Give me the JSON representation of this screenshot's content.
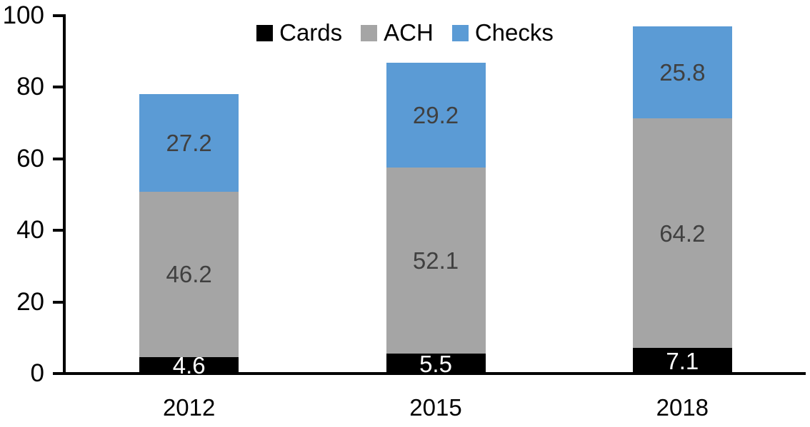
{
  "chart_data": {
    "type": "bar",
    "stacked": true,
    "title": "",
    "categories": [
      "2012",
      "2015",
      "2018"
    ],
    "series": [
      {
        "name": "Cards",
        "color": "#000000",
        "label_color": "#ffffff",
        "values": [
          4.6,
          5.5,
          7.1
        ]
      },
      {
        "name": "ACH",
        "color": "#a5a5a5",
        "label_color": "#404040",
        "values": [
          46.2,
          52.1,
          64.2
        ]
      },
      {
        "name": "Checks",
        "color": "#5b9bd5",
        "label_color": "#404040",
        "values": [
          27.2,
          29.2,
          25.8
        ]
      }
    ],
    "totals": [
      78.0,
      86.8,
      97.1
    ],
    "ylim": [
      0,
      100
    ],
    "yticks": [
      0,
      20,
      40,
      60,
      80,
      100
    ],
    "legend_position": "top",
    "legend_labels": [
      "Cards",
      "ACH",
      "Checks"
    ],
    "grid": false,
    "data_labels": true,
    "axis_color": "#000000"
  }
}
